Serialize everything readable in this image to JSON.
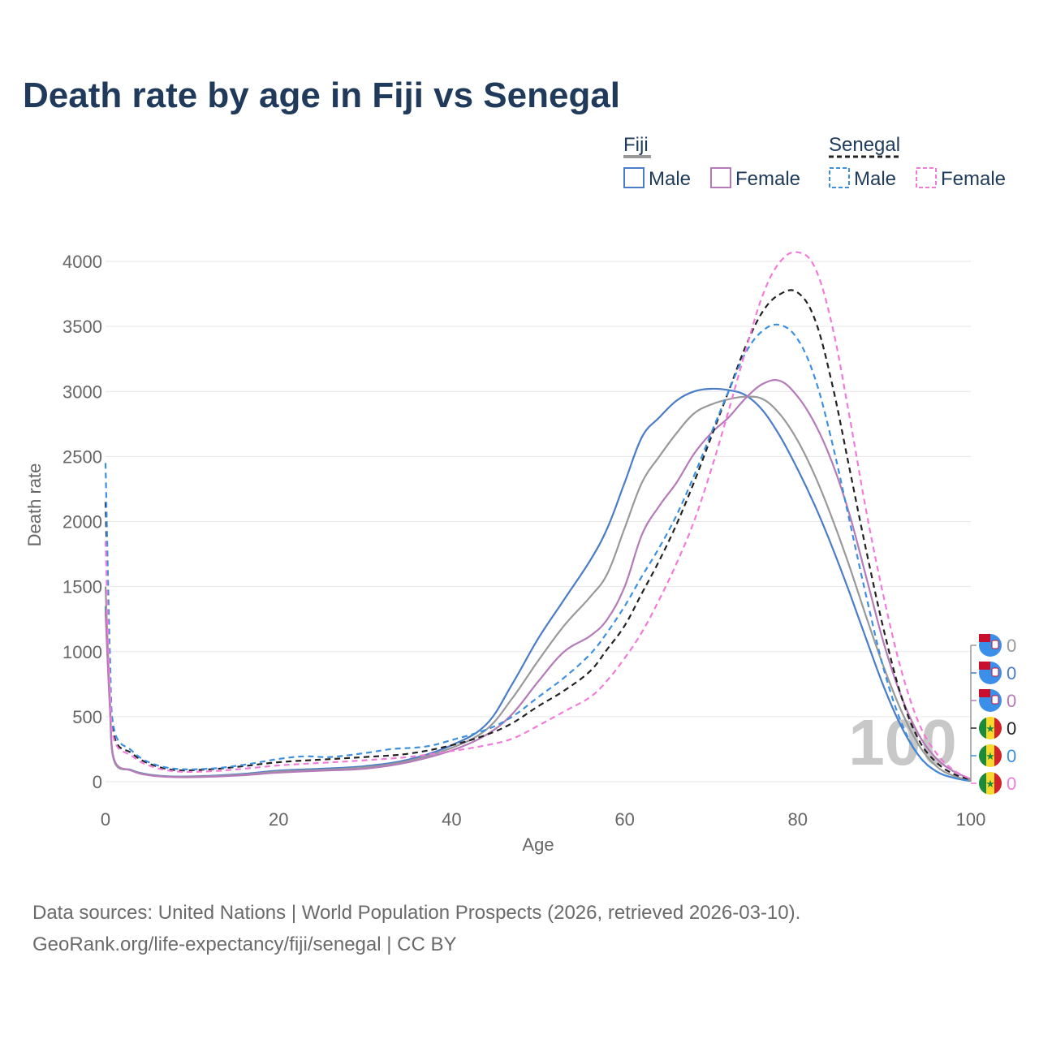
{
  "title": "Death rate by age in Fiji vs Senegal",
  "legend": {
    "groups": [
      {
        "heading": "Fiji",
        "items": [
          "Male",
          "Female"
        ]
      },
      {
        "heading": "Senegal",
        "items": [
          "Male",
          "Female"
        ]
      }
    ]
  },
  "watermark": "100",
  "source": {
    "line1": "Data sources: United Nations | World Population Prospects (2026, retrieved 2026-03-10).",
    "line2": "GeoRank.org/life-expectancy/fiji/senegal | CC BY"
  },
  "chart_data": {
    "type": "line",
    "title": "Death rate by age in Fiji vs Senegal",
    "xlabel": "Age",
    "ylabel": "Death rate",
    "xlim": [
      0,
      100
    ],
    "ylim": [
      0,
      4000
    ],
    "xticks": [
      0,
      20,
      40,
      60,
      80,
      100
    ],
    "yticks": [
      0,
      500,
      1000,
      1500,
      2000,
      2500,
      3000,
      3500,
      4000
    ],
    "grid": true,
    "legend_position": "top-right",
    "series": [
      {
        "name": "Fiji Male",
        "country": "Fiji",
        "sex": "Male",
        "color": "#4a7cc8",
        "dashed": false,
        "end_label": "0",
        "points": [
          [
            0,
            1350
          ],
          [
            0.5,
            600
          ],
          [
            1,
            160
          ],
          [
            3,
            90
          ],
          [
            5,
            55
          ],
          [
            8,
            40
          ],
          [
            12,
            45
          ],
          [
            16,
            60
          ],
          [
            20,
            85
          ],
          [
            25,
            100
          ],
          [
            30,
            120
          ],
          [
            35,
            170
          ],
          [
            40,
            280
          ],
          [
            44,
            440
          ],
          [
            47,
            750
          ],
          [
            50,
            1100
          ],
          [
            53,
            1400
          ],
          [
            56,
            1700
          ],
          [
            58,
            1950
          ],
          [
            60,
            2300
          ],
          [
            62,
            2650
          ],
          [
            64,
            2800
          ],
          [
            66,
            2930
          ],
          [
            68,
            3000
          ],
          [
            70,
            3020
          ],
          [
            72,
            3010
          ],
          [
            74,
            2970
          ],
          [
            76,
            2850
          ],
          [
            78,
            2650
          ],
          [
            80,
            2400
          ],
          [
            82,
            2120
          ],
          [
            84,
            1800
          ],
          [
            86,
            1450
          ],
          [
            88,
            1080
          ],
          [
            90,
            720
          ],
          [
            92,
            420
          ],
          [
            94,
            200
          ],
          [
            96,
            80
          ],
          [
            98,
            30
          ],
          [
            100,
            5
          ]
        ]
      },
      {
        "name": "Fiji Total",
        "country": "Fiji",
        "sex": "Total",
        "color": "#999999",
        "dashed": false,
        "end_label": "0",
        "points": [
          [
            0,
            1500
          ],
          [
            0.5,
            650
          ],
          [
            1,
            165
          ],
          [
            3,
            88
          ],
          [
            5,
            52
          ],
          [
            8,
            38
          ],
          [
            12,
            42
          ],
          [
            16,
            55
          ],
          [
            20,
            78
          ],
          [
            25,
            92
          ],
          [
            30,
            110
          ],
          [
            35,
            160
          ],
          [
            40,
            260
          ],
          [
            44,
            400
          ],
          [
            47,
            640
          ],
          [
            50,
            930
          ],
          [
            53,
            1200
          ],
          [
            56,
            1420
          ],
          [
            58,
            1600
          ],
          [
            60,
            1950
          ],
          [
            62,
            2300
          ],
          [
            64,
            2500
          ],
          [
            66,
            2680
          ],
          [
            68,
            2830
          ],
          [
            70,
            2900
          ],
          [
            72,
            2940
          ],
          [
            74,
            2960
          ],
          [
            76,
            2940
          ],
          [
            78,
            2820
          ],
          [
            80,
            2620
          ],
          [
            82,
            2350
          ],
          [
            84,
            2020
          ],
          [
            86,
            1650
          ],
          [
            88,
            1250
          ],
          [
            90,
            870
          ],
          [
            92,
            540
          ],
          [
            94,
            280
          ],
          [
            96,
            120
          ],
          [
            98,
            45
          ],
          [
            100,
            10
          ]
        ]
      },
      {
        "name": "Fiji Female",
        "country": "Fiji",
        "sex": "Female",
        "color": "#b57ab8",
        "dashed": false,
        "end_label": "0",
        "points": [
          [
            0,
            1300
          ],
          [
            0.5,
            580
          ],
          [
            1,
            170
          ],
          [
            3,
            85
          ],
          [
            5,
            50
          ],
          [
            8,
            35
          ],
          [
            12,
            38
          ],
          [
            16,
            50
          ],
          [
            20,
            70
          ],
          [
            25,
            85
          ],
          [
            30,
            100
          ],
          [
            35,
            150
          ],
          [
            40,
            240
          ],
          [
            44,
            360
          ],
          [
            47,
            520
          ],
          [
            50,
            770
          ],
          [
            53,
            1000
          ],
          [
            56,
            1120
          ],
          [
            58,
            1250
          ],
          [
            60,
            1500
          ],
          [
            62,
            1900
          ],
          [
            64,
            2120
          ],
          [
            66,
            2300
          ],
          [
            68,
            2520
          ],
          [
            70,
            2680
          ],
          [
            72,
            2800
          ],
          [
            74,
            2950
          ],
          [
            76,
            3060
          ],
          [
            78,
            3080
          ],
          [
            80,
            2960
          ],
          [
            82,
            2750
          ],
          [
            84,
            2450
          ],
          [
            86,
            2050
          ],
          [
            88,
            1550
          ],
          [
            90,
            1050
          ],
          [
            92,
            650
          ],
          [
            94,
            360
          ],
          [
            96,
            180
          ],
          [
            98,
            80
          ],
          [
            100,
            20
          ]
        ]
      },
      {
        "name": "Senegal Total",
        "country": "Senegal",
        "sex": "Total",
        "color": "#222222",
        "dashed": true,
        "end_label": "0",
        "points": [
          [
            0,
            2150
          ],
          [
            0.5,
            900
          ],
          [
            1,
            350
          ],
          [
            3,
            220
          ],
          [
            5,
            140
          ],
          [
            8,
            90
          ],
          [
            12,
            95
          ],
          [
            16,
            120
          ],
          [
            20,
            150
          ],
          [
            25,
            170
          ],
          [
            30,
            190
          ],
          [
            35,
            215
          ],
          [
            40,
            280
          ],
          [
            44,
            360
          ],
          [
            47,
            450
          ],
          [
            50,
            580
          ],
          [
            53,
            700
          ],
          [
            56,
            850
          ],
          [
            58,
            1020
          ],
          [
            60,
            1200
          ],
          [
            62,
            1450
          ],
          [
            64,
            1700
          ],
          [
            66,
            1980
          ],
          [
            68,
            2300
          ],
          [
            70,
            2650
          ],
          [
            72,
            3000
          ],
          [
            74,
            3350
          ],
          [
            76,
            3620
          ],
          [
            78,
            3750
          ],
          [
            80,
            3760
          ],
          [
            82,
            3550
          ],
          [
            84,
            3050
          ],
          [
            86,
            2400
          ],
          [
            88,
            1750
          ],
          [
            90,
            1150
          ],
          [
            92,
            650
          ],
          [
            94,
            320
          ],
          [
            96,
            150
          ],
          [
            98,
            60
          ],
          [
            100,
            15
          ]
        ]
      },
      {
        "name": "Senegal Male",
        "country": "Senegal",
        "sex": "Male",
        "color": "#3d8fe0",
        "dashed": true,
        "end_label": "0",
        "points": [
          [
            0,
            2450
          ],
          [
            0.5,
            1000
          ],
          [
            1,
            400
          ],
          [
            3,
            240
          ],
          [
            5,
            150
          ],
          [
            8,
            100
          ],
          [
            12,
            100
          ],
          [
            16,
            130
          ],
          [
            20,
            175
          ],
          [
            23,
            195
          ],
          [
            26,
            190
          ],
          [
            30,
            220
          ],
          [
            33,
            250
          ],
          [
            37,
            270
          ],
          [
            40,
            320
          ],
          [
            44,
            400
          ],
          [
            47,
            500
          ],
          [
            50,
            650
          ],
          [
            53,
            800
          ],
          [
            56,
            980
          ],
          [
            58,
            1150
          ],
          [
            60,
            1350
          ],
          [
            62,
            1580
          ],
          [
            64,
            1800
          ],
          [
            66,
            2050
          ],
          [
            68,
            2350
          ],
          [
            70,
            2680
          ],
          [
            72,
            3000
          ],
          [
            74,
            3300
          ],
          [
            76,
            3470
          ],
          [
            78,
            3510
          ],
          [
            80,
            3400
          ],
          [
            82,
            3100
          ],
          [
            84,
            2600
          ],
          [
            86,
            2000
          ],
          [
            88,
            1400
          ],
          [
            90,
            850
          ],
          [
            92,
            450
          ],
          [
            94,
            200
          ],
          [
            96,
            80
          ],
          [
            98,
            30
          ],
          [
            100,
            5
          ]
        ]
      },
      {
        "name": "Senegal Female",
        "country": "Senegal",
        "sex": "Female",
        "color": "#f27bd9",
        "dashed": true,
        "end_label": "0",
        "points": [
          [
            0,
            1850
          ],
          [
            0.5,
            750
          ],
          [
            1,
            320
          ],
          [
            3,
            200
          ],
          [
            5,
            125
          ],
          [
            8,
            80
          ],
          [
            12,
            80
          ],
          [
            16,
            100
          ],
          [
            20,
            125
          ],
          [
            25,
            145
          ],
          [
            30,
            165
          ],
          [
            35,
            190
          ],
          [
            40,
            235
          ],
          [
            44,
            280
          ],
          [
            47,
            330
          ],
          [
            50,
            430
          ],
          [
            53,
            540
          ],
          [
            56,
            650
          ],
          [
            58,
            780
          ],
          [
            60,
            950
          ],
          [
            62,
            1150
          ],
          [
            64,
            1400
          ],
          [
            66,
            1680
          ],
          [
            68,
            2000
          ],
          [
            70,
            2400
          ],
          [
            72,
            2850
          ],
          [
            74,
            3320
          ],
          [
            76,
            3750
          ],
          [
            78,
            4000
          ],
          [
            80,
            4070
          ],
          [
            82,
            3950
          ],
          [
            84,
            3500
          ],
          [
            86,
            2800
          ],
          [
            88,
            2050
          ],
          [
            90,
            1400
          ],
          [
            92,
            850
          ],
          [
            94,
            450
          ],
          [
            96,
            220
          ],
          [
            98,
            90
          ],
          [
            100,
            20
          ]
        ]
      }
    ]
  }
}
